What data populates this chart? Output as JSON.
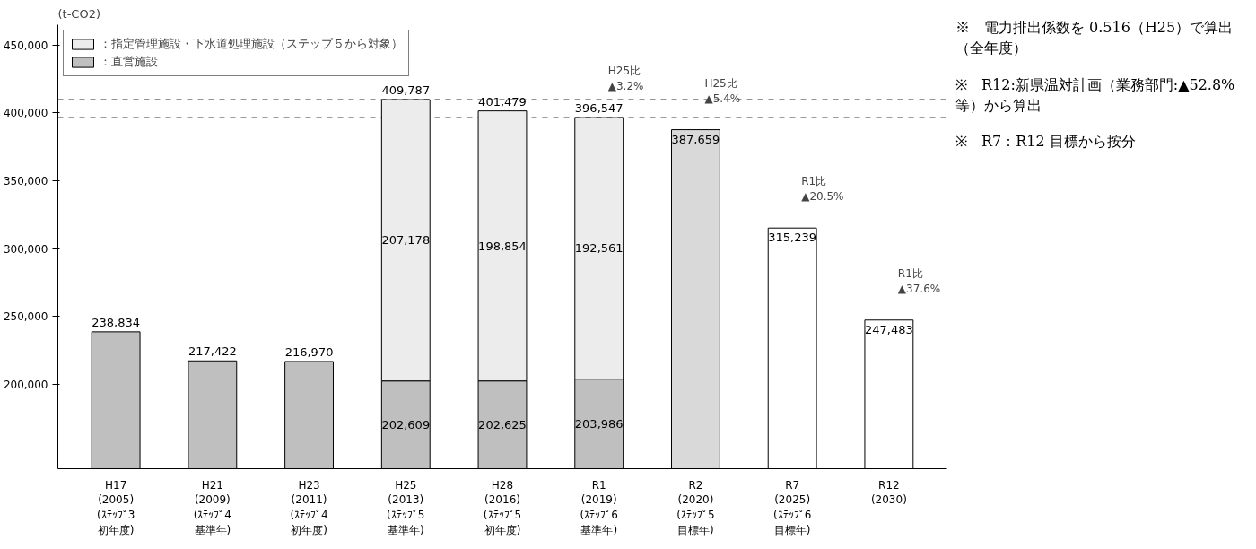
{
  "chart_data": {
    "type": "bar",
    "ylabel": "(t-CO2)",
    "categories": [
      "H17\n(2005)\n(ｽﾃｯﾌﾟ3\n初年度)",
      "H21\n(2009)\n(ｽﾃｯﾌﾟ4\n基準年)",
      "H23\n(2011)\n(ｽﾃｯﾌﾟ4\n初年度)",
      "H25\n(2013)\n(ｽﾃｯﾌﾟ5\n基準年)",
      "H28\n(2016)\n(ｽﾃｯﾌﾟ5\n初年度)",
      "R1\n(2019)\n(ｽﾃｯﾌﾟ6\n基準年)",
      "R2\n(2020)\n(ｽﾃｯﾌﾟ5\n目標年)",
      "R7\n(2025)\n(ｽﾃｯﾌﾟ6\n目標年)",
      "R12\n(2030)"
    ],
    "stacked": true,
    "series": [
      {
        "name": "：直営施設",
        "color": "#bfbfbf",
        "values": [
          238834,
          217422,
          216970,
          202609,
          202625,
          203986,
          null,
          null,
          null
        ],
        "value_labels": [
          "238,834",
          "217,422",
          "216,970",
          "202,609",
          "202,625",
          "203,986",
          null,
          null,
          null
        ]
      },
      {
        "name": "：指定管理施設・下水道処理施設（ステップ５から対象）",
        "color": "#ececec",
        "values": [
          null,
          null,
          null,
          207178,
          198854,
          192561,
          null,
          null,
          null
        ],
        "value_labels": [
          null,
          null,
          null,
          "207,178",
          "198,854",
          "192,561",
          null,
          null,
          null
        ]
      },
      {
        "colors": [
          "#ffffff",
          "#ffffff",
          "#ffffff",
          "#ffffff",
          "#ffffff",
          "#ffffff",
          "#d9d9d9",
          "#ffffff",
          "#ffffff"
        ],
        "values": [
          null,
          null,
          null,
          null,
          null,
          null,
          387659,
          315239,
          247483
        ],
        "value_labels": [
          null,
          null,
          null,
          null,
          null,
          null,
          "387,659",
          "315,239",
          "247,483"
        ]
      }
    ],
    "totals": [
      null,
      null,
      null,
      "409,787",
      "401,479",
      "396,547",
      null,
      null,
      null
    ],
    "ylim": [
      138000,
      465000
    ],
    "yticks": [
      {
        "value": 200000,
        "label": "200,000"
      },
      {
        "value": 250000,
        "label": "250,000"
      },
      {
        "value": 300000,
        "label": "300,000"
      },
      {
        "value": 350000,
        "label": "350,000"
      },
      {
        "value": 400000,
        "label": "400,000"
      },
      {
        "value": 450000,
        "label": "450,000"
      }
    ],
    "ref_lines": [
      {
        "axis": "y",
        "value": 409787,
        "line_style": "dashed"
      },
      {
        "axis": "y",
        "value": 396547,
        "line_style": "dashed"
      }
    ],
    "grid": false,
    "legend": "top left",
    "annotations": [
      {
        "text": "H25比\n▲3.2%",
        "x": "R1\n(2019)\n(ｽﾃｯﾌﾟ6\n基準年)",
        "y": 396547
      },
      {
        "text": "H25比\n▲5.4%",
        "x": "R2\n(2020)\n(ｽﾃｯﾌﾟ5\n目標年)",
        "y": 387659
      },
      {
        "text": "R1比\n▲20.5%",
        "x": "R7\n(2025)\n(ｽﾃｯﾌﾟ6\n目標年)",
        "y": 315239
      },
      {
        "text": "R1比\n▲37.6%",
        "x": "R12\n(2030)",
        "y": 247483
      },
      "※　電力排出係数を 0.516（H25）で算出（全年度）",
      "※　R12:新県温対計画（業務部門:▲52.8%等）から算出",
      "※　R7：R12 目標から按分"
    ]
  }
}
